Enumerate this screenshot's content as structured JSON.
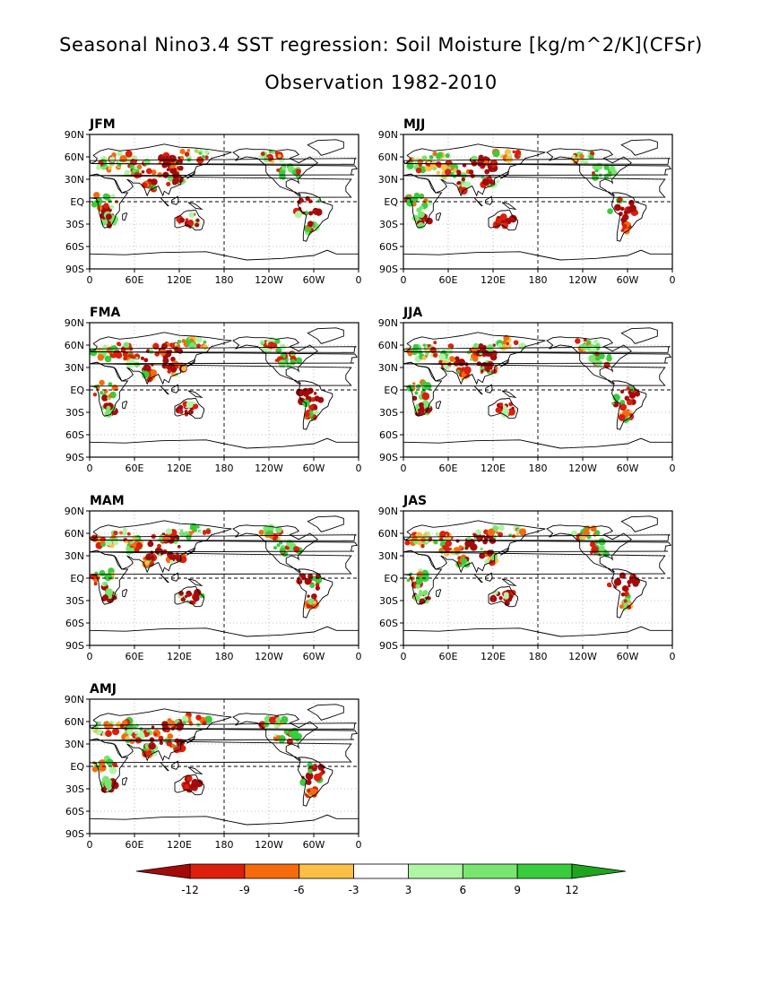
{
  "title": "Seasonal Nino3.4 SST regression: Soil Moisture [kg/m^2/K](CFSr)",
  "subtitle": "Observation 1982-2010",
  "panels": [
    {
      "label": "JFM"
    },
    {
      "label": "MJJ"
    },
    {
      "label": "FMA"
    },
    {
      "label": "JJA"
    },
    {
      "label": "MAM"
    },
    {
      "label": "JAS"
    },
    {
      "label": "AMJ"
    }
  ],
  "lat_ticks": [
    "90N",
    "60N",
    "30N",
    "EQ",
    "30S",
    "60S",
    "90S"
  ],
  "lon_ticks": [
    "0",
    "60E",
    "120E",
    "180",
    "120W",
    "60W",
    "0"
  ],
  "colorbar": {
    "labels": [
      "-12",
      "-9",
      "-6",
      "-3",
      "3",
      "6",
      "9",
      "12"
    ],
    "colors": [
      "#a50a0a",
      "#dc1e0a",
      "#f56a0a",
      "#fbbf45",
      "#ffffff",
      "#b0f5a5",
      "#78e66e",
      "#37cd3c",
      "#1ea51e"
    ]
  },
  "map_colors": {
    "dark_red": "#a50a0a",
    "red": "#dc1e0a",
    "orange": "#f56a0a",
    "light_orange": "#fbbf45",
    "light_green": "#b0f5a5",
    "green": "#78e66e",
    "dark_green": "#37cd3c"
  }
}
